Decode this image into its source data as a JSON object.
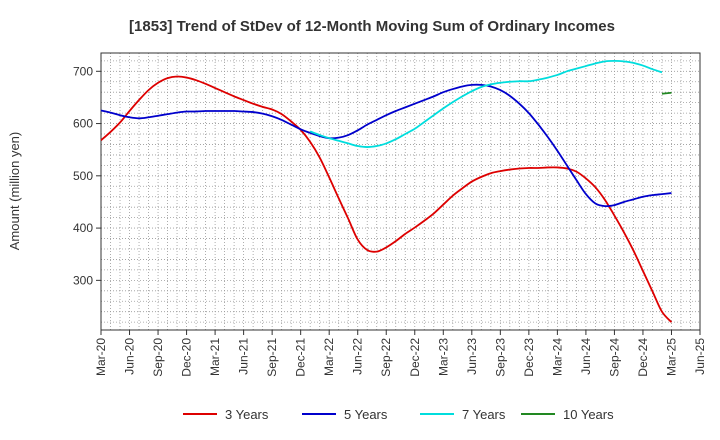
{
  "chart_data": {
    "type": "line",
    "title": "[1853]  Trend of StDev of 12-Month Moving Sum of Ordinary Incomes",
    "xlabel": "",
    "ylabel": "Amount (million yen)",
    "ylim": [
      205,
      735
    ],
    "yticks": [
      300,
      400,
      500,
      600,
      700
    ],
    "xticks": [
      "Mar-20",
      "Jun-20",
      "Sep-20",
      "Dec-20",
      "Mar-21",
      "Jun-21",
      "Sep-21",
      "Dec-21",
      "Mar-22",
      "Jun-22",
      "Sep-22",
      "Dec-22",
      "Mar-23",
      "Jun-23",
      "Sep-23",
      "Dec-23",
      "Mar-24",
      "Jun-24",
      "Sep-24",
      "Dec-24",
      "Mar-25",
      "Jun-25"
    ],
    "legend_position": "bottom",
    "grid": true,
    "series": [
      {
        "name": "3 Years",
        "color": "#dd0000",
        "start_index": 0,
        "values": [
          568,
          584,
          602,
          624,
          645,
          664,
          678,
          687,
          690,
          688,
          683,
          676,
          668,
          660,
          652,
          645,
          638,
          632,
          627,
          618,
          604,
          588,
          565,
          535,
          497,
          457,
          418,
          378,
          358,
          355,
          363,
          375,
          389,
          401,
          414,
          428,
          445,
          462,
          476,
          489,
          498,
          505,
          509,
          512,
          514,
          515,
          515,
          516,
          516,
          514,
          508,
          495,
          478,
          454,
          424,
          392,
          357,
          318,
          279,
          240,
          220
        ]
      },
      {
        "name": "5 Years",
        "color": "#0000cc",
        "start_index": 0,
        "values": [
          625,
          621,
          616,
          612,
          610,
          612,
          615,
          618,
          621,
          623,
          623,
          624,
          624,
          624,
          624,
          623,
          622,
          619,
          614,
          607,
          598,
          589,
          582,
          576,
          572,
          573,
          578,
          587,
          598,
          607,
          616,
          624,
          631,
          638,
          645,
          652,
          660,
          666,
          671,
          674,
          674,
          671,
          664,
          653,
          638,
          620,
          598,
          574,
          548,
          520,
          492,
          465,
          447,
          442,
          444,
          450,
          455,
          460,
          463,
          465,
          467
        ]
      },
      {
        "name": "7 Years",
        "color": "#00dddd",
        "start_index": 22,
        "values": [
          585,
          578,
          572,
          567,
          562,
          557,
          555,
          557,
          562,
          570,
          580,
          590,
          603,
          616,
          629,
          641,
          652,
          662,
          670,
          675,
          678,
          680,
          681,
          681,
          684,
          688,
          693,
          700,
          705,
          710,
          715,
          719,
          720,
          719,
          716,
          711,
          704,
          698
        ]
      },
      {
        "name": "10 Years",
        "color": "#228822",
        "start_index": 59,
        "values": [
          657,
          659
        ]
      }
    ]
  }
}
